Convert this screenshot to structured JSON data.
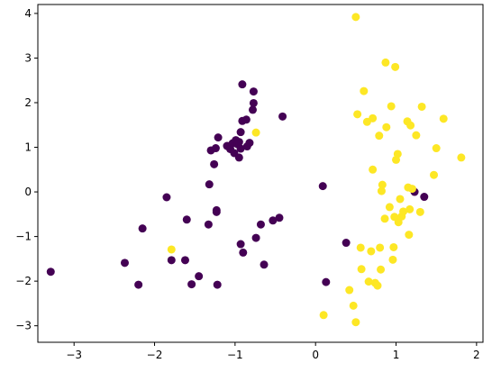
{
  "chart_data": {
    "type": "scatter",
    "title": "",
    "xlabel": "",
    "ylabel": "",
    "xlim": [
      -3.45,
      2.08
    ],
    "ylim": [
      -3.37,
      4.2
    ],
    "xticks": [
      -3,
      -2,
      -1,
      0,
      1,
      2
    ],
    "yticks": [
      -3,
      -2,
      -1,
      0,
      1,
      2,
      3,
      4
    ],
    "grid": false,
    "legend": "none",
    "series": [
      {
        "color": "#440154",
        "points": [
          [
            -3.29,
            -1.79
          ],
          [
            -2.37,
            -1.59
          ],
          [
            -2.2,
            -2.08
          ],
          [
            -2.15,
            -0.82
          ],
          [
            -1.85,
            -0.12
          ],
          [
            -1.79,
            -1.53
          ],
          [
            -1.62,
            -1.53
          ],
          [
            -1.6,
            -0.62
          ],
          [
            -1.54,
            -2.07
          ],
          [
            -1.45,
            -1.89
          ],
          [
            -1.32,
            0.17
          ],
          [
            -1.33,
            -0.73
          ],
          [
            -1.23,
            -0.45
          ],
          [
            -1.22,
            -2.08
          ],
          [
            -1.23,
            -0.41
          ],
          [
            -1.26,
            0.62
          ],
          [
            -1.3,
            0.93
          ],
          [
            -1.24,
            0.98
          ],
          [
            -1.21,
            1.22
          ],
          [
            -1.1,
            1.03
          ],
          [
            -1.06,
            0.96
          ],
          [
            -1.03,
            1.09
          ],
          [
            -1.01,
            0.87
          ],
          [
            -0.99,
            1.16
          ],
          [
            -0.97,
            1.07
          ],
          [
            -0.95,
            1.12
          ],
          [
            -0.93,
            0.97
          ],
          [
            -0.95,
            0.77
          ],
          [
            -0.93,
            1.34
          ],
          [
            -0.91,
            1.59
          ],
          [
            -0.91,
            2.41
          ],
          [
            -0.86,
            1.62
          ],
          [
            -0.85,
            1.02
          ],
          [
            -0.82,
            1.1
          ],
          [
            -0.78,
            1.84
          ],
          [
            -0.77,
            1.99
          ],
          [
            -0.77,
            2.25
          ],
          [
            -0.93,
            -1.17
          ],
          [
            -0.9,
            -1.36
          ],
          [
            -0.74,
            -1.03
          ],
          [
            -0.68,
            -0.73
          ],
          [
            -0.64,
            -1.63
          ],
          [
            -0.53,
            -0.64
          ],
          [
            -0.45,
            -0.58
          ],
          [
            -0.41,
            1.69
          ],
          [
            0.09,
            0.13
          ],
          [
            0.13,
            -2.02
          ],
          [
            0.38,
            -1.14
          ],
          [
            1.23,
            0.0
          ],
          [
            1.35,
            -0.11
          ]
        ]
      },
      {
        "color": "#fde725",
        "points": [
          [
            -1.79,
            -1.29
          ],
          [
            -0.74,
            1.33
          ],
          [
            0.1,
            -2.76
          ],
          [
            0.42,
            -2.2
          ],
          [
            0.47,
            -2.55
          ],
          [
            0.5,
            -2.92
          ],
          [
            0.5,
            3.92
          ],
          [
            0.52,
            1.74
          ],
          [
            0.56,
            -1.25
          ],
          [
            0.57,
            -1.73
          ],
          [
            0.6,
            2.26
          ],
          [
            0.64,
            1.57
          ],
          [
            0.66,
            -2.01
          ],
          [
            0.69,
            -1.33
          ],
          [
            0.71,
            1.65
          ],
          [
            0.71,
            0.5
          ],
          [
            0.74,
            -2.04
          ],
          [
            0.77,
            -2.1
          ],
          [
            0.79,
            1.26
          ],
          [
            0.8,
            -1.25
          ],
          [
            0.81,
            -1.74
          ],
          [
            0.82,
            0.02
          ],
          [
            0.83,
            0.16
          ],
          [
            0.86,
            -0.6
          ],
          [
            0.87,
            2.9
          ],
          [
            0.88,
            1.45
          ],
          [
            0.92,
            -0.34
          ],
          [
            0.94,
            1.92
          ],
          [
            0.96,
            -1.52
          ],
          [
            0.97,
            -1.24
          ],
          [
            0.98,
            -0.56
          ],
          [
            0.99,
            2.8
          ],
          [
            1.0,
            0.72
          ],
          [
            1.02,
            0.85
          ],
          [
            1.03,
            -0.68
          ],
          [
            1.05,
            -0.16
          ],
          [
            1.07,
            -0.55
          ],
          [
            1.09,
            -0.44
          ],
          [
            1.14,
            1.58
          ],
          [
            1.15,
            0.1
          ],
          [
            1.16,
            -0.96
          ],
          [
            1.17,
            -0.39
          ],
          [
            1.18,
            1.49
          ],
          [
            1.2,
            0.07
          ],
          [
            1.25,
            1.27
          ],
          [
            1.3,
            -0.45
          ],
          [
            1.32,
            1.91
          ],
          [
            1.47,
            0.38
          ],
          [
            1.5,
            0.98
          ],
          [
            1.59,
            1.64
          ],
          [
            1.81,
            0.77
          ]
        ]
      }
    ]
  }
}
